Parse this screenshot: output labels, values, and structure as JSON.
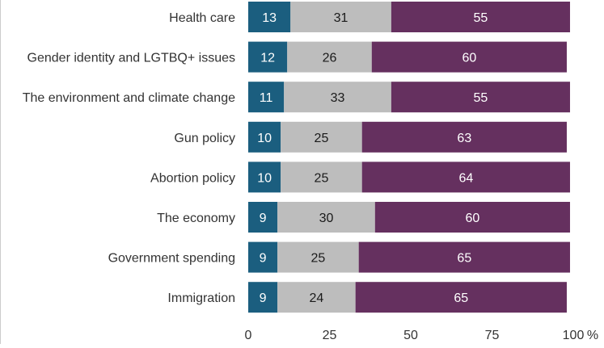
{
  "chart_data": {
    "type": "bar",
    "orientation": "horizontal",
    "stacked": true,
    "categories": [
      "Health care",
      "Gender identity and LGTBQ+ issues",
      "The environment and climate change",
      "Gun policy",
      "Abortion policy",
      "The economy",
      "Government spending",
      "Immigration"
    ],
    "series": [
      {
        "color": "#1b5e7f",
        "label_color": "#ffffff",
        "values": [
          13,
          12,
          11,
          10,
          10,
          9,
          9,
          9
        ]
      },
      {
        "color": "#bdbdbd",
        "label_color": "#1a1a1a",
        "values": [
          31,
          26,
          33,
          25,
          25,
          30,
          25,
          24
        ]
      },
      {
        "color": "#65305f",
        "label_color": "#ffffff",
        "values": [
          55,
          60,
          55,
          63,
          64,
          60,
          65,
          65
        ]
      }
    ],
    "xlim": [
      0,
      100
    ],
    "x_ticks": [
      "0",
      "25",
      "50",
      "75",
      "100"
    ],
    "x_unit": "%",
    "grid": false,
    "legend": "none"
  }
}
